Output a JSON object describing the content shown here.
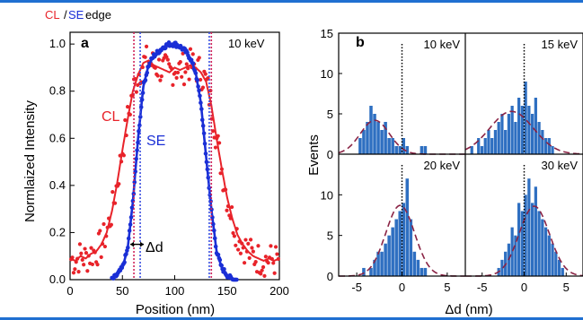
{
  "colors": {
    "frame": "#1f6fd1",
    "cl": "#e8232a",
    "se": "#1a2fd6",
    "dotted_cl": "#d0245a",
    "dotted_se": "#3b4fe0",
    "purple": "#7a2a8a",
    "bar": "#2e6fc1",
    "fit": "#8a2445"
  },
  "panel_a": {
    "label": "a",
    "energy": "10 keV",
    "title_cl": "CL",
    "title_slash": "/",
    "title_se": "SE",
    "title_rest": " edge",
    "curve_label_cl": "CL",
    "curve_label_se": "SE",
    "delta_label": "Δd",
    "xlabel": "Position (nm)",
    "ylabel": "Normlaized Intensity",
    "xlim": [
      0,
      200
    ],
    "ylim": [
      0,
      1.05
    ],
    "xticks": [
      "0",
      "50",
      "100",
      "150",
      "200"
    ],
    "yticks": [
      "0.0",
      "0.2",
      "0.4",
      "0.6",
      "0.8",
      "1.0"
    ],
    "cl_edges": [
      61,
      135
    ],
    "se_edges": [
      67,
      133
    ]
  },
  "panel_b": {
    "label": "b",
    "ylabel": "Events",
    "xlabel": "Δd (nm)",
    "xticks": [
      "-5",
      "0",
      "5"
    ],
    "yticks": [
      "0",
      "5",
      "10",
      "15"
    ],
    "energies": [
      "10 keV",
      "15 keV",
      "20 keV",
      "30 keV"
    ]
  },
  "chart_data": [
    {
      "type": "scatter",
      "panel": "a",
      "title": "CL/SE edge",
      "xlabel": "Position (nm)",
      "ylabel": "Normlaized Intensity",
      "xlim": [
        0,
        200
      ],
      "ylim": [
        0,
        1.05
      ],
      "series": [
        {
          "name": "CL",
          "x": [
            0,
            5,
            10,
            15,
            20,
            25,
            30,
            35,
            40,
            45,
            50,
            55,
            60,
            65,
            70,
            75,
            80,
            85,
            90,
            95,
            100,
            105,
            110,
            115,
            120,
            125,
            130,
            135,
            140,
            145,
            150,
            155,
            160,
            165,
            170,
            175,
            180,
            185,
            190,
            195,
            200
          ],
          "y": [
            0.09,
            0.08,
            0.1,
            0.09,
            0.11,
            0.12,
            0.15,
            0.2,
            0.29,
            0.41,
            0.55,
            0.68,
            0.8,
            0.87,
            0.92,
            0.93,
            0.91,
            0.9,
            0.89,
            0.88,
            0.9,
            0.89,
            0.9,
            0.91,
            0.9,
            0.88,
            0.84,
            0.74,
            0.6,
            0.47,
            0.35,
            0.26,
            0.19,
            0.15,
            0.12,
            0.1,
            0.09,
            0.08,
            0.09,
            0.08,
            0.09
          ]
        },
        {
          "name": "SE",
          "x": [
            40,
            45,
            50,
            55,
            60,
            65,
            70,
            75,
            80,
            85,
            90,
            95,
            100,
            105,
            110,
            115,
            120,
            125,
            130,
            135,
            140,
            145,
            150,
            155,
            160
          ],
          "y": [
            0.0,
            0.02,
            0.05,
            0.13,
            0.33,
            0.6,
            0.82,
            0.91,
            0.95,
            0.97,
            0.99,
            1.0,
            1.0,
            0.99,
            0.97,
            0.94,
            0.88,
            0.75,
            0.52,
            0.3,
            0.12,
            0.05,
            0.02,
            0.0,
            0.0
          ]
        }
      ]
    },
    {
      "type": "bar",
      "panel": "b",
      "energy": "10 keV",
      "xlim": [
        -7,
        7
      ],
      "ylim": [
        0,
        15
      ],
      "bin_width": 0.4,
      "bin_starts": [
        -6.0,
        -5.6,
        -5.2,
        -4.8,
        -4.4,
        -4.0,
        -3.6,
        -3.2,
        -2.8,
        -2.4,
        -2.0,
        -1.6,
        -1.2,
        -0.8,
        -0.4,
        0.0,
        0.4,
        0.8,
        1.2,
        1.6,
        2.0,
        2.4
      ],
      "values": [
        0,
        0,
        0,
        2,
        3,
        4,
        6,
        5,
        4,
        3,
        4,
        2,
        2,
        1,
        1,
        2,
        1,
        0,
        0,
        0,
        1,
        1
      ],
      "fit_mu": -3.0,
      "fit_sigma": 1.6,
      "fit_amp": 4.2
    },
    {
      "type": "bar",
      "panel": "b",
      "energy": "15 keV",
      "xlim": [
        -7,
        7
      ],
      "ylim": [
        0,
        15
      ],
      "bin_width": 0.4,
      "bin_starts": [
        -6.4,
        -6.0,
        -5.6,
        -5.2,
        -4.8,
        -4.4,
        -4.0,
        -3.6,
        -3.2,
        -2.8,
        -2.4,
        -2.0,
        -1.6,
        -1.2,
        -0.8,
        -0.4,
        0.0,
        0.4,
        0.8,
        1.2,
        1.6,
        2.0,
        2.4,
        2.8,
        3.2
      ],
      "values": [
        1,
        0,
        2,
        1,
        2,
        3,
        2,
        3,
        4,
        5,
        3,
        5,
        6,
        4,
        7,
        6,
        9,
        6,
        5,
        7,
        4,
        3,
        2,
        2,
        1
      ],
      "fit_mu": -1.5,
      "fit_sigma": 2.6,
      "fit_amp": 5.3
    },
    {
      "type": "bar",
      "panel": "b",
      "energy": "20 keV",
      "xlim": [
        -7,
        7
      ],
      "ylim": [
        0,
        15
      ],
      "bin_width": 0.4,
      "bin_starts": [
        -4.4,
        -4.0,
        -3.6,
        -3.2,
        -2.8,
        -2.4,
        -2.0,
        -1.6,
        -1.2,
        -0.8,
        -0.4,
        0.0,
        0.4,
        0.8,
        1.2,
        1.6,
        2.0,
        2.4
      ],
      "values": [
        1,
        0,
        1,
        2,
        3,
        3,
        4,
        5,
        6,
        7,
        8,
        9,
        12,
        7,
        3,
        2,
        1,
        1
      ],
      "fit_mu": -0.2,
      "fit_sigma": 1.6,
      "fit_amp": 8.7
    },
    {
      "type": "bar",
      "panel": "b",
      "energy": "30 keV",
      "xlim": [
        -7,
        7
      ],
      "ylim": [
        0,
        15
      ],
      "bin_width": 0.4,
      "bin_starts": [
        -3.2,
        -2.8,
        -2.4,
        -2.0,
        -1.6,
        -1.2,
        -0.8,
        -0.4,
        0.0,
        0.4,
        0.8,
        1.2,
        1.6,
        2.0,
        2.4,
        2.8,
        3.2,
        3.6,
        4.0,
        4.4
      ],
      "values": [
        1,
        2,
        3,
        4,
        6,
        5,
        9,
        8,
        10,
        12,
        9,
        11,
        8,
        7,
        6,
        5,
        4,
        3,
        2,
        1
      ],
      "fit_mu": 1.2,
      "fit_sigma": 1.8,
      "fit_amp": 8.6
    }
  ]
}
